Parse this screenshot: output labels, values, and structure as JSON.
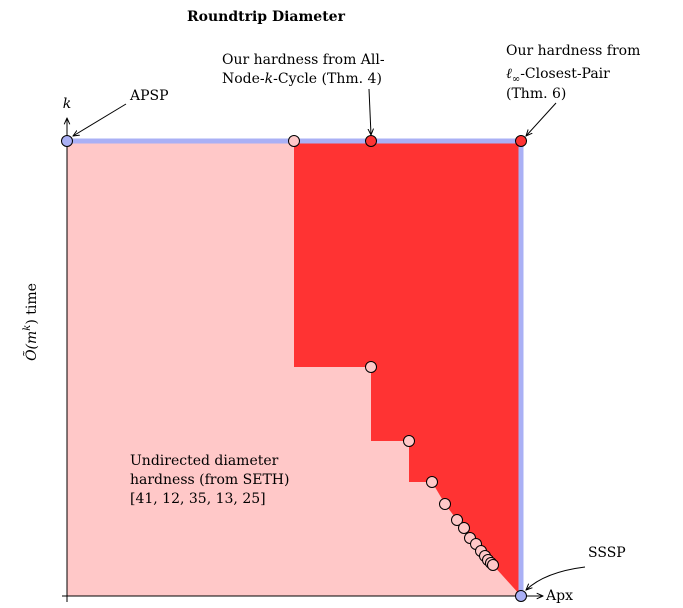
{
  "title": "Roundtrip Diameter",
  "y_axis": {
    "top_label": "k",
    "title_prefix": "Õ(m",
    "title_exp": "k",
    "title_suffix": ") time"
  },
  "x_axis": {
    "end_label": "Apx"
  },
  "callouts": {
    "apsp": "APSP",
    "sssp": "SSSP",
    "all_node_cycle": {
      "line1": "Our hardness from All-",
      "line2_a": "Node-",
      "line2_k": "k",
      "line2_b": "-Cycle (Thm. 4)"
    },
    "closest_pair": {
      "line1": "Our hardness from",
      "line2_l": "ℓ",
      "line2_sub": "∞",
      "line2_b": "-Closest-Pair",
      "line3": "(Thm. 6)"
    },
    "undirected": {
      "line1": "Undirected diameter",
      "line2": "hardness (from SETH)",
      "line3": "[41, 12, 35, 13, 25]"
    }
  },
  "colors": {
    "pink_region": "#ffc8c8",
    "red_region": "#ff3333",
    "blue_edge": "#aab0f5",
    "point_light": "#ffc8c8",
    "point_red": "#ff3333",
    "point_blue": "#aab0f5"
  }
}
